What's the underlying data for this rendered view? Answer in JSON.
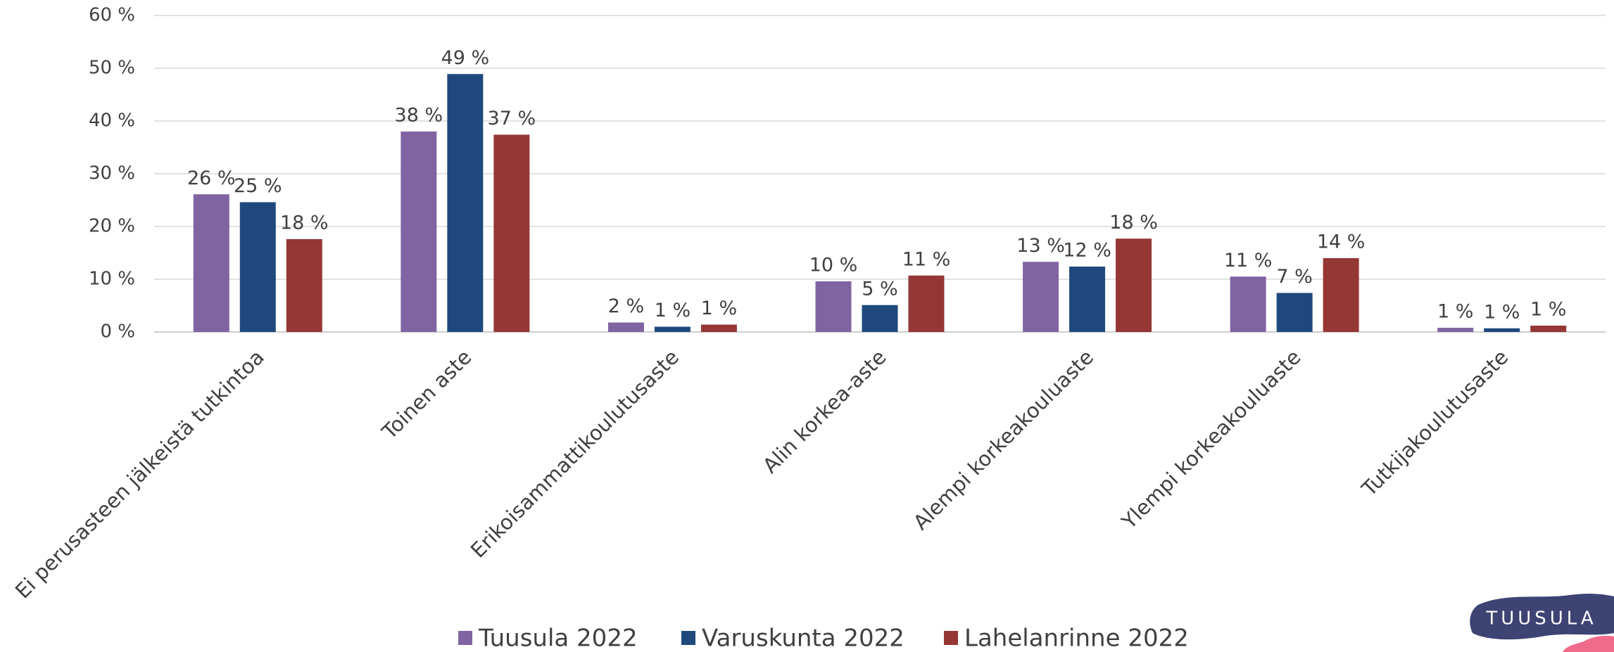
{
  "chart_data": {
    "type": "bar",
    "categories": [
      "Ei perusasteen jälkeistä tutkintoa",
      "Toinen aste",
      "Erikoisammattikoulutusaste",
      "Alin korkea-aste",
      "Alempi korkeakouluaste",
      "Ylempi korkeakouluaste",
      "Tutkijakoulutusaste"
    ],
    "series": [
      {
        "name": "Tuusula 2022",
        "color": "#8064a2",
        "values": [
          26.1,
          38.0,
          1.8,
          9.6,
          13.3,
          10.5,
          0.8
        ],
        "value_labels": [
          "26 %",
          "38 %",
          "2 %",
          "10 %",
          "13 %",
          "11 %",
          "1 %"
        ]
      },
      {
        "name": "Varuskunta 2022",
        "color": "#1f497d",
        "values": [
          24.6,
          48.9,
          1.0,
          5.1,
          12.4,
          7.4,
          0.7
        ],
        "value_labels": [
          "25 %",
          "49 %",
          "1 %",
          "5 %",
          "12 %",
          "7 %",
          "1 %"
        ]
      },
      {
        "name": "Lahelanrinne 2022",
        "color": "#953735",
        "values": [
          17.6,
          37.4,
          1.4,
          10.7,
          17.7,
          14.0,
          1.2
        ],
        "value_labels": [
          "18 %",
          "37 %",
          "1 %",
          "11 %",
          "18 %",
          "14 %",
          "1 %"
        ]
      }
    ],
    "ylim": [
      0,
      60
    ],
    "yticks": [
      {
        "value": 0,
        "label": "0 %"
      },
      {
        "value": 10,
        "label": "10 %"
      },
      {
        "value": 20,
        "label": "20 %"
      },
      {
        "value": 30,
        "label": "30 %"
      },
      {
        "value": 40,
        "label": "40 %"
      },
      {
        "value": 50,
        "label": "50 %"
      },
      {
        "value": 60,
        "label": "60 %"
      }
    ],
    "grid": true,
    "legend": "bottom"
  },
  "logo": {
    "text": "TUUSULA"
  }
}
